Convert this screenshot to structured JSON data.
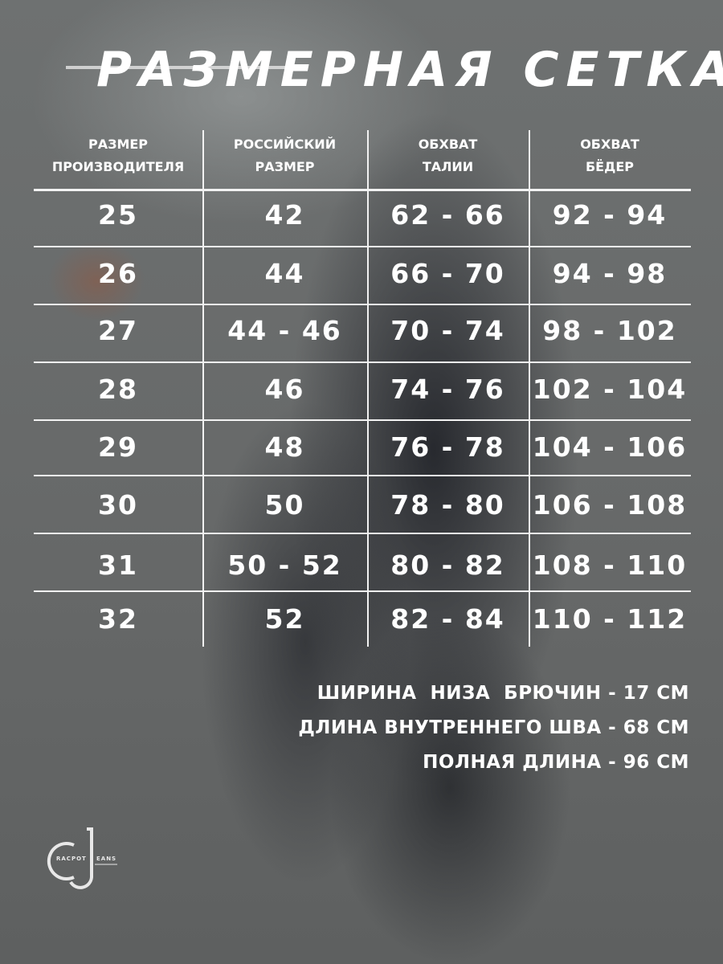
{
  "title": "РАЗМЕРНАЯ СЕТКА",
  "table": {
    "headers": [
      [
        "РАЗМЕР",
        "ПРОИЗВОДИТЕЛЯ"
      ],
      [
        "РОССИЙСКИЙ",
        "РАЗМЕР"
      ],
      [
        "ОБХВАТ",
        "ТАЛИИ"
      ],
      [
        "ОБХВАТ",
        "БЁДЕР"
      ]
    ],
    "rows": [
      [
        "25",
        "42",
        "62 - 66",
        "92 - 94"
      ],
      [
        "26",
        "44",
        "66 - 70",
        "94 - 98"
      ],
      [
        "27",
        "44 - 46",
        "70 - 74",
        "98 - 102"
      ],
      [
        "28",
        "46",
        "74 - 76",
        "102 - 104"
      ],
      [
        "29",
        "48",
        "76 - 78",
        "104 - 106"
      ],
      [
        "30",
        "50",
        "78 - 80",
        "106 - 108"
      ],
      [
        "31",
        "50 - 52",
        "80 - 82",
        "108 - 110"
      ],
      [
        "32",
        "52",
        "82 - 84",
        "110 - 112"
      ]
    ]
  },
  "notes": [
    "ШИРИНА  НИЗА  БРЮЧИН - 17 СМ",
    "ДЛИНА ВНУТРЕННЕГО ШВА - 68 СМ",
    "ПОЛНАЯ ДЛИНА - 96 СМ"
  ],
  "logo": {
    "letters": "CJ",
    "text_left": "RACPOT",
    "text_right": "EANS"
  }
}
